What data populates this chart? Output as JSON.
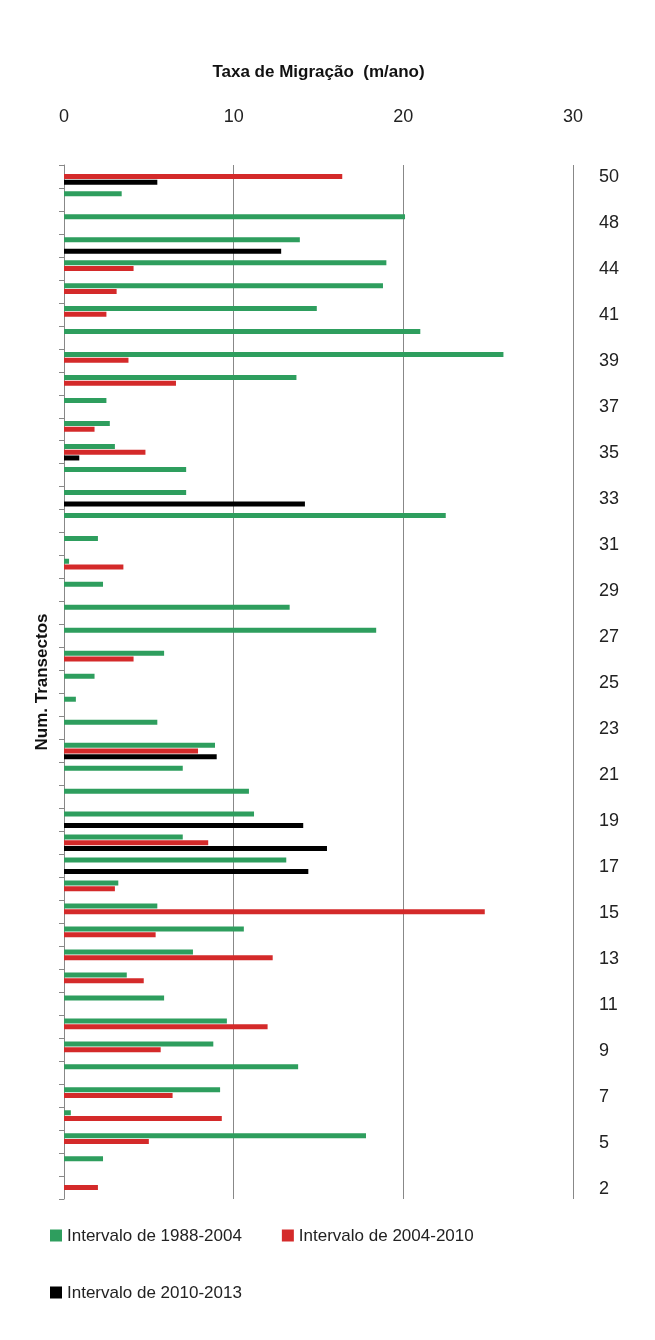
{
  "chart_data": {
    "type": "bar",
    "orientation": "horizontal",
    "xlabel": "Taxa de Migração  (m/ano)",
    "ylabel": "Num. Transectos",
    "categories": [
      "50",
      null,
      "48",
      null,
      "44",
      null,
      "41",
      null,
      "39",
      null,
      "37",
      null,
      "35",
      null,
      "33",
      null,
      "31",
      null,
      "29",
      null,
      "27",
      null,
      "25",
      null,
      "23",
      null,
      "21",
      null,
      "19",
      null,
      "17",
      null,
      "15",
      null,
      "13",
      null,
      "11",
      null,
      "9",
      null,
      "7",
      null,
      "5",
      null,
      "2"
    ],
    "series": [
      {
        "name": "Intervalo de 1988-2004",
        "color": "#2e9e5e",
        "values": [
          null,
          3.4,
          20.1,
          13.9,
          19.0,
          18.8,
          14.9,
          21.0,
          25.9,
          13.7,
          2.5,
          2.7,
          3.0,
          7.2,
          7.2,
          22.5,
          2.0,
          0.3,
          2.3,
          13.3,
          18.4,
          5.9,
          1.8,
          0.7,
          5.5,
          8.9,
          7.0,
          10.9,
          11.2,
          7.0,
          13.1,
          3.2,
          5.5,
          10.6,
          7.6,
          3.7,
          5.9,
          9.6,
          8.8,
          13.8,
          9.2,
          0.4,
          17.8,
          2.3,
          null
        ]
      },
      {
        "name": "Intervalo de 2004-2010",
        "color": "#d42a2a",
        "values": [
          16.4,
          null,
          null,
          null,
          4.1,
          3.1,
          2.5,
          null,
          3.8,
          6.6,
          null,
          1.8,
          4.8,
          null,
          null,
          null,
          null,
          3.5,
          null,
          null,
          null,
          4.1,
          null,
          null,
          null,
          7.9,
          null,
          null,
          null,
          8.5,
          null,
          3.0,
          24.8,
          5.4,
          12.3,
          4.7,
          null,
          12.0,
          5.7,
          null,
          6.4,
          9.3,
          5.0,
          null,
          2.0
        ]
      },
      {
        "name": "Intervalo de 2010-2013",
        "color": "#000000",
        "values": [
          5.5,
          null,
          null,
          12.8,
          null,
          null,
          null,
          null,
          null,
          null,
          null,
          null,
          0.9,
          null,
          14.2,
          null,
          null,
          null,
          null,
          null,
          null,
          null,
          null,
          null,
          null,
          9.0,
          null,
          null,
          14.1,
          15.5,
          14.4,
          null,
          null,
          null,
          null,
          null,
          null,
          null,
          null,
          null,
          null,
          null,
          null,
          null,
          null
        ]
      }
    ],
    "xlim": [
      0,
      30
    ],
    "xticks": [
      0,
      10,
      20,
      30
    ],
    "grid": "x",
    "legend": "bottom"
  }
}
